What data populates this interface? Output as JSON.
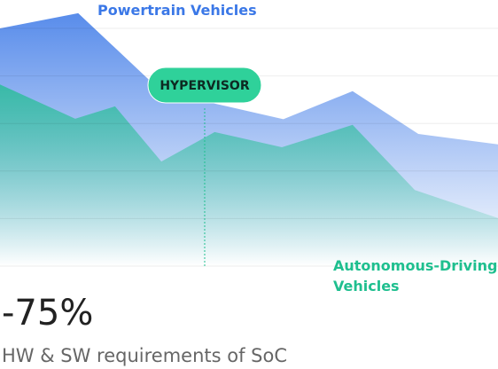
{
  "chart_data": {
    "type": "area",
    "xlim": [
      0,
      100
    ],
    "ylim": [
      0,
      5
    ],
    "yticks": [
      0,
      1,
      2,
      3,
      4,
      5
    ],
    "grid": true,
    "series": [
      {
        "name": "Powertrain Vehicles",
        "color": "#3b78e7",
        "x": [
          0,
          15.7,
          29.9,
          41.8,
          56.9,
          70.8,
          84.0,
          100
        ],
        "values": [
          5.0,
          5.32,
          3.92,
          3.45,
          3.09,
          3.68,
          2.78,
          2.56
        ]
      },
      {
        "name": "Autonomous-Driving Vehicles",
        "color": "#1fbf8f",
        "x": [
          0,
          15.1,
          23.1,
          32.4,
          43.1,
          56.6,
          70.8,
          83.3,
          100
        ],
        "values": [
          3.82,
          3.1,
          3.36,
          2.2,
          2.82,
          2.5,
          2.97,
          1.6,
          1.01
        ]
      }
    ],
    "annotation": {
      "text": "HYPERVISOR",
      "x": 41.1
    }
  },
  "kpi": {
    "value": "-75%",
    "caption": "HW & SW requirements of SoC"
  }
}
